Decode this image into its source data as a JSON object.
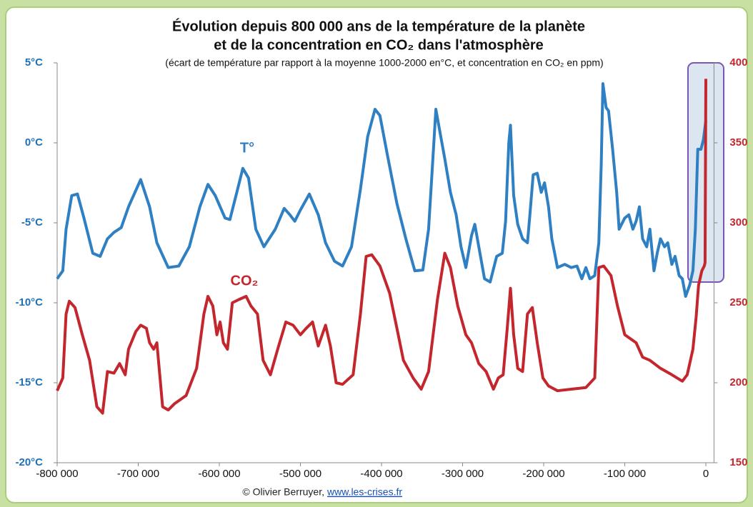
{
  "chart_data": {
    "type": "line",
    "title": "Évolution depuis 800 000 ans de la température de la planète",
    "title_line2": "et de la concentration en CO₂ dans l'atmosphère",
    "subtitle": "(écart de température par rapport à la moyenne 1000-2000 en°C, et concentration en CO₂ en ppm)",
    "source": "© Olivier Berruyer,",
    "source_link": "www.les-crises.fr",
    "xlim": [
      -800000,
      10000
    ],
    "xticks": [
      {
        "value": -800000,
        "label": "-800 000"
      },
      {
        "value": -700000,
        "label": "-700 000"
      },
      {
        "value": -600000,
        "label": "-600 000"
      },
      {
        "value": -500000,
        "label": "-500 000"
      },
      {
        "value": -400000,
        "label": "-400 000"
      },
      {
        "value": -300000,
        "label": "-300 000"
      },
      {
        "value": -200000,
        "label": "-200 000"
      },
      {
        "value": -100000,
        "label": "-100 000"
      },
      0
    ],
    "ylim": [
      -20,
      5
    ],
    "yticks": [
      {
        "value": 5,
        "label": "5°C"
      },
      {
        "value": 0,
        "label": "0°C"
      },
      {
        "value": -5,
        "label": "-5°C"
      },
      {
        "value": -10,
        "label": "-10°C"
      },
      {
        "value": -15,
        "label": "-15°C"
      },
      {
        "value": -20,
        "label": "-20°C"
      }
    ],
    "y2lim": [
      150,
      400
    ],
    "y2ticks": [
      400,
      350,
      300,
      250,
      200,
      150
    ],
    "grid": false,
    "series": [
      {
        "name": "T°",
        "color": "#2f80c3",
        "x": [
          -800000,
          -793000,
          -789000,
          -782000,
          -775000,
          -767000,
          -756000,
          -747000,
          -738000,
          -730000,
          -721000,
          -712000,
          -697000,
          -686000,
          -677000,
          -663000,
          -650000,
          -637000,
          -624000,
          -614000,
          -605000,
          -593000,
          -587000,
          -578000,
          -571000,
          -564000,
          -555000,
          -545000,
          -531000,
          -520000,
          -513000,
          -507000,
          -500000,
          -489000,
          -478000,
          -469000,
          -458000,
          -448000,
          -437000,
          -426000,
          -417000,
          -408000,
          -402000,
          -393000,
          -381000,
          -370000,
          -359000,
          -349000,
          -342000,
          -337000,
          -333000,
          -328000,
          -322000,
          -315000,
          -308000,
          -302000,
          -296000,
          -289000,
          -285000,
          -280000,
          -273000,
          -266000,
          -258000,
          -251000,
          -247000,
          -243000,
          -241000,
          -237000,
          -232000,
          -226000,
          -220000,
          -217000,
          -213000,
          -208000,
          -203000,
          -199000,
          -194000,
          -190000,
          -183000,
          -174000,
          -166000,
          -159000,
          -153000,
          -148000,
          -143000,
          -137000,
          -132000,
          -129000,
          -127000,
          -123000,
          -120000,
          -115000,
          -110000,
          -107000,
          -104000,
          -100000,
          -95000,
          -90000,
          -86000,
          -82000,
          -78000,
          -73000,
          -69000,
          -64000,
          -60000,
          -56000,
          -51000,
          -47000,
          -42000,
          -38000,
          -33000,
          -29000,
          -25000,
          -20000,
          -16000,
          -13000,
          -10000,
          -6000,
          -3000,
          0
        ],
        "values": [
          -8.5,
          -8.0,
          -5.4,
          -3.3,
          -3.2,
          -4.7,
          -6.9,
          -7.1,
          -6.0,
          -5.6,
          -5.3,
          -4.0,
          -2.3,
          -4.0,
          -6.25,
          -7.8,
          -7.7,
          -6.5,
          -4.0,
          -2.6,
          -3.3,
          -4.7,
          -4.8,
          -3.0,
          -1.6,
          -2.2,
          -5.4,
          -6.5,
          -5.4,
          -4.1,
          -4.5,
          -4.9,
          -4.2,
          -3.2,
          -4.5,
          -6.25,
          -7.4,
          -7.7,
          -6.5,
          -2.9,
          0.4,
          2.1,
          1.7,
          -0.7,
          -3.8,
          -6.0,
          -8.0,
          -7.95,
          -5.4,
          -1.3,
          2.1,
          0.7,
          -1.0,
          -3.1,
          -4.5,
          -6.5,
          -7.8,
          -5.8,
          -5.1,
          -6.5,
          -8.5,
          -8.7,
          -7.1,
          -6.9,
          -4.9,
          0.0,
          1.1,
          -3.3,
          -5.1,
          -6.0,
          -6.25,
          -4.5,
          -2.0,
          -1.9,
          -3.1,
          -2.5,
          -4.0,
          -6.0,
          -7.8,
          -7.6,
          -7.8,
          -7.7,
          -8.5,
          -7.8,
          -8.5,
          -8.3,
          -6.25,
          -1.3,
          3.7,
          2.2,
          2.0,
          -0.4,
          -3.1,
          -5.4,
          -5.1,
          -4.7,
          -4.5,
          -5.4,
          -4.9,
          -4.0,
          -6.0,
          -6.5,
          -5.4,
          -8.0,
          -6.9,
          -6.0,
          -6.5,
          -6.25,
          -7.6,
          -7.1,
          -8.3,
          -8.5,
          -9.6,
          -8.9,
          -8.0,
          -5.4,
          -0.4,
          -0.4,
          0.2,
          1.4
        ]
      },
      {
        "name": "CO₂",
        "color": "#c3272d",
        "axis": "y2",
        "x": [
          -800000,
          -793000,
          -789000,
          -785000,
          -778000,
          -769000,
          -760000,
          -751000,
          -744000,
          -738000,
          -730000,
          -723000,
          -716000,
          -712000,
          -703000,
          -697000,
          -690000,
          -686000,
          -681000,
          -677000,
          -670000,
          -663000,
          -655000,
          -641000,
          -628000,
          -619000,
          -614000,
          -608000,
          -603000,
          -599000,
          -595000,
          -590000,
          -584000,
          -576000,
          -567000,
          -561000,
          -553000,
          -546000,
          -537000,
          -528000,
          -518000,
          -509000,
          -500000,
          -493000,
          -485000,
          -478000,
          -469000,
          -463000,
          -456000,
          -448000,
          -435000,
          -426000,
          -419000,
          -412000,
          -402000,
          -390000,
          -381000,
          -373000,
          -361000,
          -351000,
          -342000,
          -331000,
          -322000,
          -315000,
          -306000,
          -296000,
          -289000,
          -280000,
          -271000,
          -262000,
          -256000,
          -250000,
          -245000,
          -241000,
          -237000,
          -232000,
          -226000,
          -220000,
          -214000,
          -208000,
          -201000,
          -194000,
          -183000,
          -166000,
          -148000,
          -137000,
          -132000,
          -126000,
          -117000,
          -109000,
          -100000,
          -86000,
          -78000,
          -69000,
          -56000,
          -42000,
          -29000,
          -23000,
          -16000,
          -12000,
          -9000,
          -5000,
          -2000,
          -1000,
          0
        ],
        "values": [
          195,
          203,
          243,
          251,
          247,
          230,
          214,
          185,
          181,
          207,
          206,
          212,
          205,
          221,
          232,
          236,
          234,
          225,
          221,
          225,
          185,
          183,
          187,
          192,
          209,
          243,
          254,
          248,
          230,
          238,
          225,
          221,
          250,
          252,
          254,
          248,
          243,
          214,
          205,
          221,
          238,
          236,
          230,
          234,
          238,
          223,
          236,
          223,
          200,
          199,
          205,
          243,
          279,
          280,
          273,
          256,
          234,
          214,
          203,
          196,
          207,
          252,
          281,
          272,
          248,
          230,
          225,
          212,
          207,
          196,
          203,
          205,
          234,
          259,
          230,
          209,
          207,
          243,
          247,
          225,
          203,
          198,
          195,
          196,
          197,
          203,
          272,
          273,
          267,
          248,
          230,
          225,
          216,
          214,
          209,
          205,
          201,
          205,
          221,
          241,
          261,
          270,
          273,
          275,
          390
        ]
      }
    ]
  }
}
